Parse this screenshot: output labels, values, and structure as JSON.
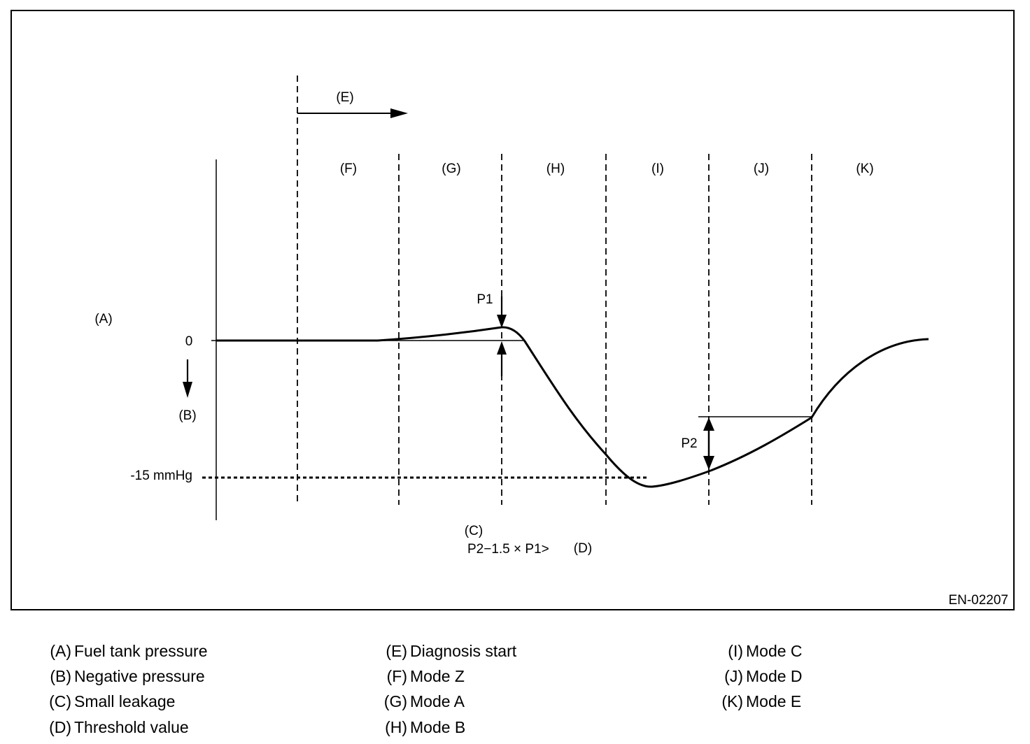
{
  "figure_id": "EN-02207",
  "labels": {
    "fuel_tank_pressure": "(A)",
    "negative_pressure": "(B)",
    "small_leakage": "(C)",
    "diagnosis_start": "(E)",
    "zero": "0",
    "threshold_level": "-15 mmHg",
    "p1": "P1",
    "p2": "P2",
    "formula": "P2−1.5 × P1>",
    "threshold": "(D)"
  },
  "modes": [
    "(F)",
    "(G)",
    "(H)",
    "(I)",
    "(J)",
    "(K)"
  ],
  "legend": [
    {
      "code": "(A)",
      "text": "Fuel tank pressure"
    },
    {
      "code": "(B)",
      "text": "Negative pressure"
    },
    {
      "code": "(C)",
      "text": "Small leakage"
    },
    {
      "code": "(D)",
      "text": "Threshold value"
    },
    {
      "code": "(E)",
      "text": "Diagnosis start"
    },
    {
      "code": "(F)",
      "text": "Mode Z"
    },
    {
      "code": "(G)",
      "text": "Mode A"
    },
    {
      "code": "(H)",
      "text": "Mode B"
    },
    {
      "code": "(I)",
      "text": "Mode C"
    },
    {
      "code": "(J)",
      "text": "Mode D"
    },
    {
      "code": "(K)",
      "text": "Mode E"
    }
  ]
}
